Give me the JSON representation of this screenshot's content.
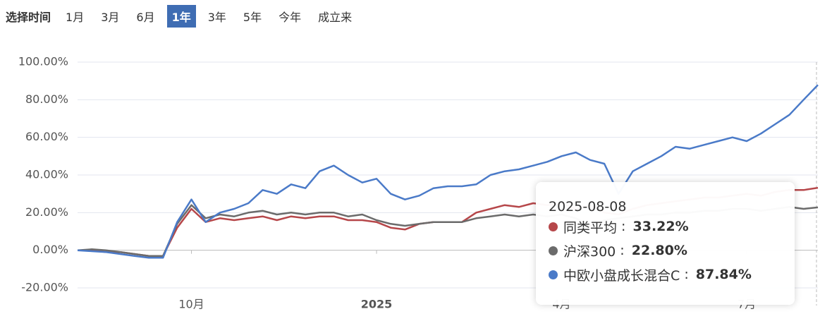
{
  "time_filter": {
    "label": "选择时间",
    "options": [
      "1月",
      "3月",
      "6月",
      "1年",
      "3年",
      "5年",
      "今年",
      "成立来"
    ],
    "selected_index": 3
  },
  "chart_data": {
    "type": "line",
    "categories": [
      null,
      null,
      null,
      null,
      null,
      null,
      null,
      null,
      "10月",
      null,
      null,
      null,
      null,
      null,
      null,
      null,
      null,
      null,
      null,
      null,
      null,
      "2025",
      null,
      null,
      null,
      null,
      null,
      null,
      null,
      null,
      null,
      null,
      null,
      null,
      "4月",
      null,
      null,
      null,
      null,
      null,
      null,
      null,
      null,
      null,
      null,
      null,
      null,
      "7月",
      null,
      null,
      null,
      null,
      null
    ],
    "series": [
      {
        "name": "同类平均",
        "color": "#b6474a",
        "values": [
          0,
          0,
          -1,
          -1,
          -2,
          -3,
          -3,
          12,
          22,
          15,
          17,
          16,
          17,
          18,
          16,
          18,
          17,
          18,
          18,
          16,
          16,
          15,
          12,
          11,
          14,
          15,
          15,
          15,
          20,
          22,
          24,
          23,
          25,
          24,
          25,
          22,
          24,
          20,
          19,
          22,
          24,
          25,
          26,
          27,
          28,
          28,
          29,
          30,
          29,
          31,
          32,
          32,
          33.22
        ]
      },
      {
        "name": "沪深300",
        "color": "#6b6b6b",
        "values": [
          0,
          0.5,
          0,
          -1,
          -2,
          -3,
          -3,
          14,
          24,
          17,
          19,
          18,
          20,
          21,
          19,
          20,
          19,
          20,
          20,
          18,
          19,
          16,
          14,
          13,
          14,
          15,
          15,
          15,
          17,
          18,
          19,
          18,
          19,
          18,
          19,
          17,
          13,
          16,
          17,
          18,
          19,
          19,
          20,
          20,
          21,
          21,
          22,
          22,
          21,
          22,
          23,
          22,
          22.8
        ]
      },
      {
        "name": "中欧小盘成长混合C",
        "color": "#4a7ac8",
        "values": [
          0,
          -0.5,
          -1,
          -2,
          -3,
          -4,
          -4,
          15,
          27,
          15,
          20,
          22,
          25,
          32,
          30,
          35,
          33,
          42,
          45,
          40,
          36,
          38,
          30,
          27,
          29,
          33,
          34,
          34,
          35,
          40,
          42,
          43,
          45,
          47,
          50,
          52,
          48,
          46,
          30,
          42,
          46,
          50,
          55,
          54,
          56,
          58,
          60,
          58,
          62,
          67,
          72,
          80,
          87.84
        ]
      }
    ],
    "ylim": [
      -20,
      100
    ],
    "yticks": [
      {
        "value": -20,
        "label": "-20.00%"
      },
      {
        "value": 0,
        "label": "0.00%"
      },
      {
        "value": 20,
        "label": "20.00%"
      },
      {
        "value": 40,
        "label": "40.00%"
      },
      {
        "value": 60,
        "label": "60.00%"
      },
      {
        "value": 80,
        "label": "80.00%"
      },
      {
        "value": 100,
        "label": "100.00%"
      }
    ],
    "grid": true,
    "tooltip": {
      "x": "2025-08-08",
      "separator": " : ",
      "labels": [
        "33.22%",
        "22.80%",
        "87.84%"
      ]
    }
  }
}
